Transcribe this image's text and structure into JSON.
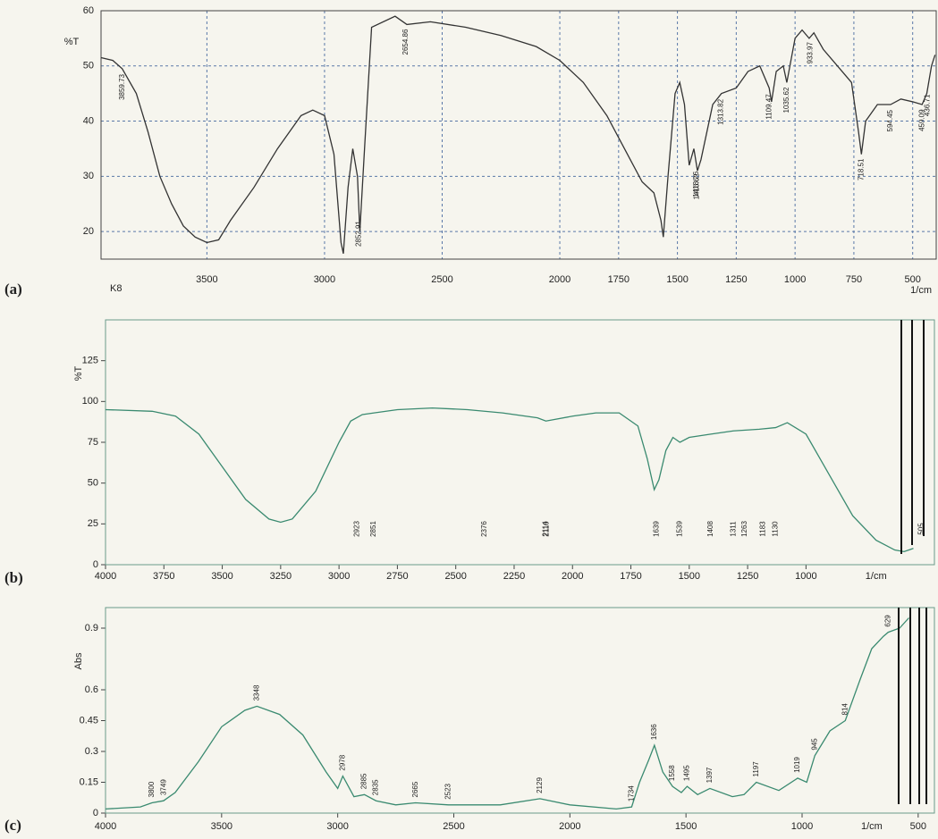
{
  "chart_data": [
    {
      "type": "line",
      "panel_label": "(a)",
      "sample_label": "K8",
      "ylabel": "%T",
      "xlabel": "1/cm",
      "color": "#333333",
      "grid": true,
      "xlim": [
        3950,
        400
      ],
      "ylim": [
        15,
        60
      ],
      "xticks": [
        3500,
        3000,
        2500,
        2000,
        1750,
        1500,
        1250,
        1000,
        750,
        500
      ],
      "yticks": [
        20,
        30,
        40,
        50,
        60
      ],
      "x": [
        3950,
        3900,
        3860,
        3800,
        3750,
        3700,
        3650,
        3600,
        3550,
        3500,
        3450,
        3400,
        3300,
        3200,
        3100,
        3050,
        3000,
        2960,
        2930,
        2920,
        2900,
        2880,
        2860,
        2850,
        2830,
        2800,
        2700,
        2650,
        2550,
        2400,
        2250,
        2100,
        2000,
        1900,
        1800,
        1700,
        1650,
        1600,
        1570,
        1560,
        1540,
        1510,
        1490,
        1470,
        1450,
        1430,
        1415,
        1400,
        1350,
        1313,
        1250,
        1200,
        1150,
        1110,
        1100,
        1080,
        1050,
        1035,
        1000,
        970,
        940,
        920,
        880,
        800,
        760,
        730,
        718,
        700,
        650,
        594,
        550,
        500,
        460,
        440,
        420,
        405
      ],
      "values": [
        51.5,
        51,
        49.5,
        45,
        38,
        30,
        25,
        21,
        19,
        18,
        18.5,
        22,
        28,
        35,
        41,
        42,
        41,
        34,
        18,
        16,
        28,
        35,
        30,
        20,
        35,
        57,
        59,
        57.5,
        58,
        57,
        55.5,
        53.5,
        51,
        47,
        41,
        33,
        29,
        27,
        22,
        19,
        30,
        45,
        47,
        43,
        32,
        35,
        31,
        33,
        43,
        45,
        46,
        49,
        50,
        46,
        43.5,
        49,
        50,
        47,
        55,
        56.5,
        55,
        56,
        53,
        49,
        47,
        38,
        34,
        40,
        43,
        43,
        44,
        43.5,
        43,
        45,
        50,
        52
      ],
      "peak_labels": [
        3859.73,
        2852.91,
        2654.86,
        1416.62,
        1418.26,
        1313.82,
        1109.47,
        1035.62,
        933.97,
        718.51,
        594.45,
        459.09,
        436.71
      ]
    },
    {
      "type": "line",
      "panel_label": "(b)",
      "ylabel": "%T",
      "xlabel": "1/cm",
      "color": "#3a8a70",
      "grid": false,
      "xlim": [
        4000,
        450
      ],
      "ylim": [
        0,
        150
      ],
      "xticks": [
        4000,
        3750,
        3500,
        3250,
        3000,
        2750,
        2500,
        2250,
        2000,
        1750,
        1500,
        1250,
        1000
      ],
      "yticks": [
        0,
        25,
        50,
        75,
        100,
        125
      ],
      "x": [
        4000,
        3800,
        3700,
        3600,
        3500,
        3400,
        3300,
        3250,
        3200,
        3100,
        3000,
        2950,
        2900,
        2850,
        2750,
        2600,
        2450,
        2300,
        2150,
        2114,
        2000,
        1900,
        1800,
        1720,
        1680,
        1650,
        1630,
        1600,
        1570,
        1540,
        1500,
        1408,
        1311,
        1200,
        1130,
        1080,
        1000,
        900,
        800,
        700,
        620,
        580,
        540
      ],
      "values": [
        95,
        94,
        91,
        80,
        60,
        40,
        28,
        26,
        28,
        45,
        75,
        88,
        92,
        93,
        95,
        96,
        95,
        93,
        90,
        88,
        91,
        93,
        93,
        85,
        65,
        46,
        52,
        70,
        78,
        75,
        78,
        80,
        82,
        83,
        84,
        87,
        80,
        55,
        30,
        15,
        9,
        8,
        10
      ],
      "peak_labels": [
        2923,
        2851,
        2376,
        2114,
        2110,
        1639,
        1539,
        1408,
        1311,
        1263,
        1183,
        1130,
        505
      ]
    },
    {
      "type": "line",
      "panel_label": "(c)",
      "ylabel": "Abs",
      "xlabel": "1/cm",
      "color": "#3a8a70",
      "grid": false,
      "xlim": [
        4000,
        430
      ],
      "ylim": [
        0,
        1.0
      ],
      "xticks": [
        4000,
        3500,
        3000,
        2500,
        2000,
        1500,
        1000,
        500
      ],
      "yticks": [
        0,
        0.15,
        0.3,
        0.45,
        0.6,
        0.9
      ],
      "x": [
        4000,
        3850,
        3800,
        3750,
        3700,
        3600,
        3500,
        3400,
        3348,
        3250,
        3150,
        3050,
        3000,
        2978,
        2930,
        2885,
        2835,
        2750,
        2665,
        2523,
        2300,
        2129,
        2000,
        1800,
        1734,
        1700,
        1660,
        1636,
        1600,
        1558,
        1520,
        1495,
        1450,
        1397,
        1300,
        1250,
        1197,
        1100,
        1019,
        980,
        945,
        880,
        814,
        750,
        700,
        650,
        629,
        580,
        540
      ],
      "values": [
        0.02,
        0.03,
        0.05,
        0.06,
        0.1,
        0.25,
        0.42,
        0.5,
        0.52,
        0.48,
        0.38,
        0.2,
        0.12,
        0.18,
        0.08,
        0.09,
        0.06,
        0.04,
        0.05,
        0.04,
        0.04,
        0.07,
        0.04,
        0.02,
        0.03,
        0.15,
        0.26,
        0.33,
        0.2,
        0.13,
        0.1,
        0.13,
        0.09,
        0.12,
        0.08,
        0.09,
        0.15,
        0.11,
        0.17,
        0.15,
        0.28,
        0.4,
        0.45,
        0.65,
        0.8,
        0.86,
        0.88,
        0.9,
        0.95
      ],
      "peak_labels": [
        3800,
        3749,
        3348,
        2978,
        2885,
        2835,
        2665,
        2523,
        2129,
        1734,
        1636,
        1558,
        1495,
        1397,
        1197,
        1019,
        945,
        814,
        629
      ]
    }
  ]
}
